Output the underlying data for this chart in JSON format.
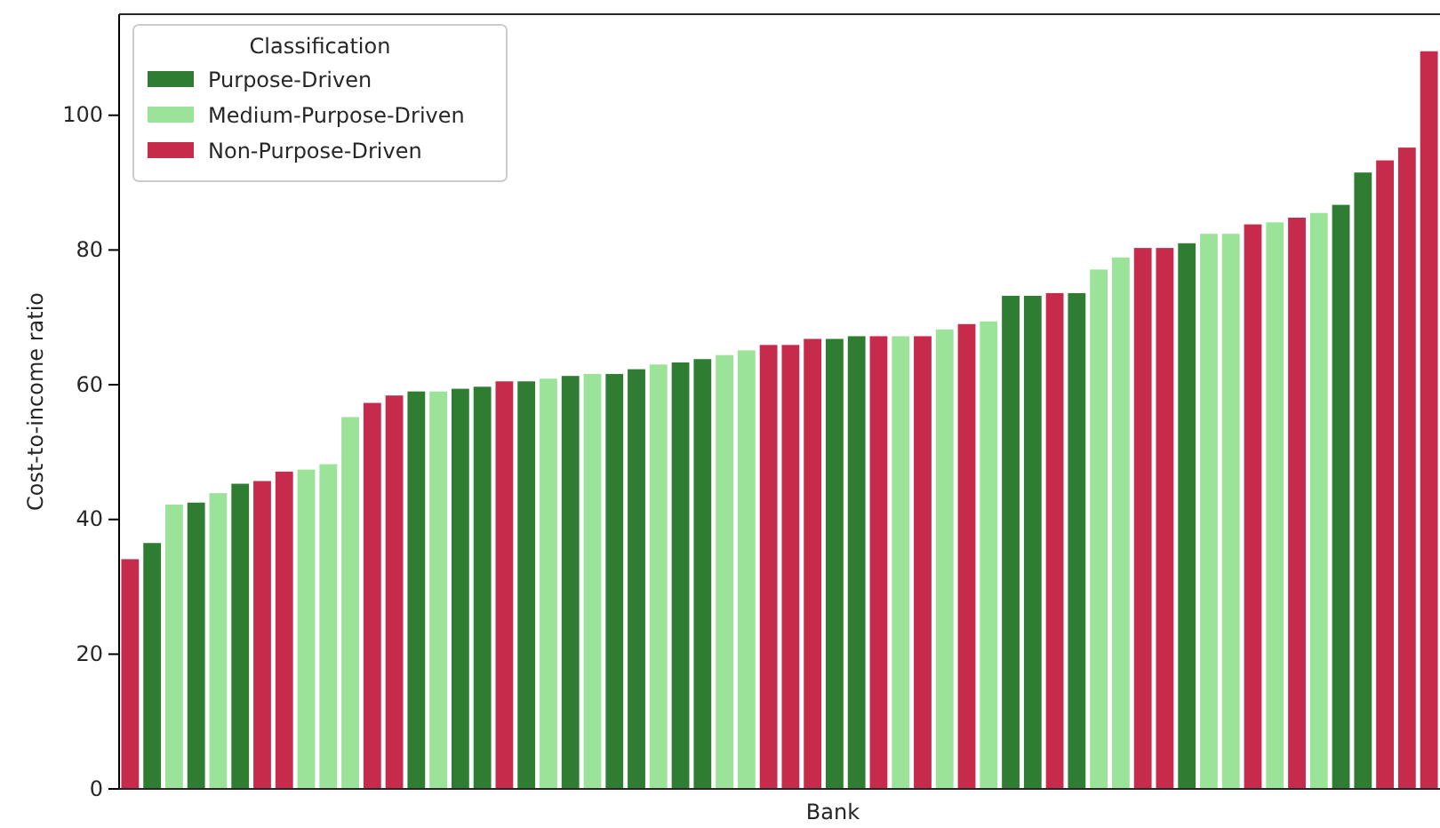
{
  "chart_data": {
    "type": "bar",
    "xlabel": "Bank",
    "ylabel": "Cost-to-income ratio",
    "legend_title": "Classification",
    "legend": "top left",
    "categories": [
      null,
      null,
      null,
      null,
      null,
      null,
      null,
      null,
      null,
      null,
      null,
      null,
      null,
      null,
      null,
      null,
      null,
      null,
      null,
      null,
      null,
      null,
      null,
      null,
      null,
      null,
      null,
      null,
      null,
      null,
      null,
      null,
      null,
      null,
      null,
      null,
      null,
      null,
      null,
      null,
      null,
      null,
      null,
      null,
      null,
      null,
      null,
      null,
      null,
      null,
      null,
      null,
      null,
      null,
      null,
      null,
      null,
      null,
      null,
      null
    ],
    "ylim": [
      0,
      115
    ],
    "yticks": [
      0,
      20,
      40,
      60,
      80,
      100
    ],
    "tick_labels": "y",
    "series": [
      {
        "name": "Purpose-Driven",
        "color": "#2e7d32",
        "values": [
          null,
          36.5,
          null,
          42.5,
          null,
          45.3,
          null,
          null,
          null,
          null,
          null,
          null,
          null,
          59.0,
          null,
          59.4,
          59.7,
          null,
          60.5,
          null,
          61.3,
          null,
          61.6,
          62.3,
          null,
          63.3,
          63.8,
          null,
          null,
          null,
          null,
          null,
          66.8,
          67.2,
          null,
          null,
          null,
          null,
          null,
          null,
          73.2,
          73.2,
          null,
          73.6,
          null,
          null,
          null,
          null,
          81.0,
          null,
          null,
          null,
          null,
          null,
          null,
          86.7,
          91.5,
          null,
          null,
          null
        ]
      },
      {
        "name": "Medium-Purpose-Driven",
        "color": "#9ce39a",
        "values": [
          null,
          null,
          42.2,
          null,
          43.9,
          null,
          null,
          null,
          47.4,
          48.2,
          55.2,
          null,
          null,
          null,
          59.0,
          null,
          null,
          null,
          null,
          60.9,
          null,
          61.6,
          null,
          null,
          63.0,
          null,
          null,
          64.4,
          65.1,
          null,
          null,
          null,
          null,
          null,
          null,
          67.2,
          null,
          68.2,
          null,
          69.4,
          null,
          null,
          null,
          null,
          77.1,
          78.9,
          null,
          null,
          null,
          82.4,
          82.4,
          null,
          84.1,
          null,
          85.5,
          null,
          null,
          null,
          null,
          null
        ]
      },
      {
        "name": "Non-Purpose-Driven",
        "color": "#c62b4b",
        "values": [
          34.1,
          null,
          null,
          null,
          null,
          null,
          45.7,
          47.1,
          null,
          null,
          null,
          57.3,
          58.4,
          null,
          null,
          null,
          null,
          60.5,
          null,
          null,
          null,
          null,
          null,
          null,
          null,
          null,
          null,
          null,
          null,
          65.9,
          65.9,
          66.8,
          null,
          null,
          67.2,
          null,
          67.2,
          null,
          69.0,
          null,
          null,
          null,
          73.6,
          null,
          null,
          null,
          80.3,
          80.3,
          null,
          null,
          null,
          83.8,
          null,
          84.8,
          null,
          null,
          null,
          93.3,
          95.2,
          109.5
        ]
      }
    ]
  }
}
